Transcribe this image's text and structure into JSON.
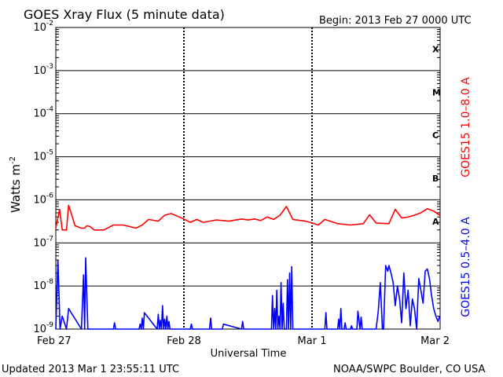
{
  "header": {
    "title": "GOES Xray Flux (5 minute data)",
    "begin": "Begin:  2013 Feb 27 0000 UTC"
  },
  "footer": {
    "updated": "Updated 2013 Mar  1 23:55:11 UTC",
    "credit": "NOAA/SWPC Boulder, CO USA"
  },
  "chart_data": {
    "type": "line",
    "title": "GOES Xray Flux (5 minute data)",
    "xlabel": "Universal Time",
    "ylabel": "Watts m",
    "ylabel_sup": "-2",
    "yscale": "log",
    "ylim": [
      1e-09,
      0.01
    ],
    "xlim": [
      "2013-02-27 00:00",
      "2013-03-02 00:00"
    ],
    "x_ticks": [
      "Feb 27",
      "Feb 28",
      "Mar 1",
      "Mar 2"
    ],
    "y_ticks": [
      {
        "base": "10",
        "exp": "-2"
      },
      {
        "base": "10",
        "exp": "-3"
      },
      {
        "base": "10",
        "exp": "-4"
      },
      {
        "base": "10",
        "exp": "-5"
      },
      {
        "base": "10",
        "exp": "-6"
      },
      {
        "base": "10",
        "exp": "-7"
      },
      {
        "base": "10",
        "exp": "-8"
      },
      {
        "base": "10",
        "exp": "-9"
      }
    ],
    "flare_classes": [
      "X",
      "M",
      "C",
      "B",
      "A"
    ],
    "grid": true,
    "series": [
      {
        "name": "GOES15 1.0–8.0 A",
        "color": "#ff0000",
        "x": [
          "02-27 00:00",
          "02-27 00:42",
          "02-27 01:12",
          "02-27 02:00",
          "02-27 02:24",
          "02-27 03:36",
          "02-27 04:48",
          "02-27 05:24",
          "02-27 05:48",
          "02-27 06:24",
          "02-27 07:12",
          "02-27 09:00",
          "02-27 10:48",
          "02-27 12:36",
          "02-27 13:48",
          "02-27 15:00",
          "02-27 16:12",
          "02-27 17:24",
          "02-27 19:12",
          "02-27 20:24",
          "02-27 21:36",
          "02-28 00:00",
          "02-28 01:12",
          "02-28 02:24",
          "02-28 03:36",
          "02-28 04:48",
          "02-28 06:00",
          "02-28 08:24",
          "02-28 10:48",
          "02-28 12:00",
          "02-28 13:12",
          "02-28 14:24",
          "02-28 15:36",
          "02-28 16:48",
          "02-28 18:00",
          "02-28 19:12",
          "02-28 20:24",
          "02-28 22:48",
          "03-01 00:00",
          "03-01 01:12",
          "03-01 02:24",
          "03-01 04:48",
          "03-01 07:12",
          "03-01 09:36",
          "03-01 10:48",
          "03-01 12:00",
          "03-01 14:24",
          "03-01 15:36",
          "03-01 16:48",
          "03-01 18:00",
          "03-01 19:12",
          "03-01 20:24",
          "03-01 21:36",
          "03-01 22:48",
          "03-01 23:55"
        ],
        "values": [
          2.2e-07,
          6e-07,
          2e-07,
          2e-07,
          7.5e-07,
          2.5e-07,
          2.2e-07,
          2.2e-07,
          2.5e-07,
          2.4e-07,
          2e-07,
          2e-07,
          2.6e-07,
          2.6e-07,
          2.4e-07,
          2.2e-07,
          2.6e-07,
          3.5e-07,
          3.2e-07,
          4.4e-07,
          4.8e-07,
          3.6e-07,
          3e-07,
          3.5e-07,
          3e-07,
          3.2e-07,
          3.4e-07,
          3.2e-07,
          3.6e-07,
          3.4e-07,
          3.6e-07,
          3.3e-07,
          4e-07,
          3.5e-07,
          4.4e-07,
          7e-07,
          3.5e-07,
          3.2e-07,
          2.9e-07,
          2.6e-07,
          3.5e-07,
          2.8e-07,
          2.6e-07,
          2.8e-07,
          4.5e-07,
          2.9e-07,
          2.8e-07,
          6e-07,
          3.8e-07,
          4e-07,
          4.4e-07,
          5e-07,
          6.2e-07,
          5.5e-07,
          4.4e-07
        ]
      },
      {
        "name": "GOES15 0.5–4.0 A",
        "color": "#0000ff",
        "x": [
          "02-27 00:00",
          "02-27 00:24",
          "02-27 00:48",
          "02-27 01:12",
          "02-27 02:00",
          "02-27 02:24",
          "02-27 04:48",
          "02-27 05:12",
          "02-27 05:24",
          "02-27 05:36",
          "02-27 06:00",
          "02-27 10:48",
          "02-27 11:00",
          "02-27 11:12",
          "02-27 15:36",
          "02-27 15:48",
          "02-27 16:00",
          "02-27 16:12",
          "02-27 16:24",
          "02-27 16:36",
          "02-27 19:00",
          "02-27 19:12",
          "02-27 19:24",
          "02-27 19:36",
          "02-27 19:48",
          "02-27 20:00",
          "02-27 20:12",
          "02-27 20:24",
          "02-27 20:36",
          "02-27 20:48",
          "02-27 21:00",
          "02-27 21:12",
          "02-27 21:24",
          "02-28 00:00",
          "02-28 01:12",
          "02-28 01:24",
          "02-28 01:36",
          "02-28 04:48",
          "02-28 05:00",
          "02-28 05:12",
          "02-28 07:12",
          "02-28 07:24",
          "02-28 10:48",
          "02-28 11:00",
          "02-28 11:12",
          "02-28 16:24",
          "02-28 16:36",
          "02-28 16:48",
          "02-28 17:00",
          "02-28 17:12",
          "02-28 17:24",
          "02-28 17:36",
          "02-28 17:48",
          "02-28 18:00",
          "02-28 18:12",
          "02-28 18:24",
          "02-28 18:36",
          "02-28 18:48",
          "02-28 19:12",
          "02-28 19:24",
          "02-28 19:36",
          "02-28 19:48",
          "02-28 20:00",
          "02-28 20:12",
          "02-28 20:24",
          "03-01 00:00",
          "03-01 02:24",
          "03-01 02:36",
          "03-01 02:48",
          "03-01 04:48",
          "03-01 05:00",
          "03-01 05:12",
          "03-01 05:24",
          "03-01 05:36",
          "03-01 06:00",
          "03-01 06:12",
          "03-01 06:24",
          "03-01 07:12",
          "03-01 07:24",
          "03-01 07:36",
          "03-01 08:24",
          "03-01 08:36",
          "03-01 09:00",
          "03-01 09:12",
          "03-01 09:24",
          "03-01 12:00",
          "03-01 12:24",
          "03-01 12:48",
          "03-01 13:12",
          "03-01 13:24",
          "03-01 13:48",
          "03-01 14:12",
          "03-01 14:24",
          "03-01 14:48",
          "03-01 15:12",
          "03-01 15:36",
          "03-01 16:00",
          "03-01 16:24",
          "03-01 16:48",
          "03-01 17:12",
          "03-01 17:36",
          "03-01 18:00",
          "03-01 18:24",
          "03-01 18:48",
          "03-01 19:12",
          "03-01 19:36",
          "03-01 20:00",
          "03-01 20:24",
          "03-01 20:48",
          "03-01 21:12",
          "03-01 21:36",
          "03-01 22:00",
          "03-01 22:24",
          "03-01 22:48",
          "03-01 23:12",
          "03-01 23:36",
          "03-01 23:55"
        ],
        "values": [
          1e-09,
          4e-08,
          1e-09,
          2e-09,
          1e-09,
          3e-09,
          1e-09,
          1.8e-08,
          1e-09,
          4.5e-08,
          1e-09,
          1e-09,
          1.4e-09,
          1e-09,
          1e-09,
          1.3e-09,
          1e-09,
          1.8e-09,
          1e-09,
          2.4e-09,
          1e-09,
          2.2e-09,
          1e-09,
          1.6e-09,
          1e-09,
          3.5e-09,
          1e-09,
          1.7e-09,
          1e-09,
          2e-09,
          1e-09,
          1.5e-09,
          1e-09,
          1e-09,
          1e-09,
          1.3e-09,
          1e-09,
          1e-09,
          1.8e-09,
          1e-09,
          1e-09,
          1.3e-09,
          1e-09,
          1.5e-09,
          1e-09,
          1e-09,
          6e-09,
          1e-09,
          3e-09,
          1e-09,
          8e-09,
          1e-09,
          2e-09,
          1e-09,
          1.2e-08,
          1e-09,
          4e-09,
          1e-09,
          1e-09,
          1.4e-08,
          1e-09,
          2e-08,
          1e-09,
          2.8e-08,
          1e-09,
          1e-09,
          1e-09,
          2.4e-09,
          1e-09,
          1e-09,
          1.7e-09,
          1e-09,
          3e-09,
          1e-09,
          1e-09,
          1.4e-09,
          1e-09,
          1e-09,
          1.2e-09,
          1e-09,
          1e-09,
          2.6e-09,
          1e-09,
          1.9e-09,
          1e-09,
          1e-09,
          2.5e-09,
          1.2e-08,
          1e-09,
          1e-09,
          3e-08,
          2.2e-08,
          3e-08,
          2e-08,
          1.2e-08,
          3.5e-09,
          1e-08,
          5e-09,
          1.4e-09,
          2e-08,
          3e-09,
          8e-09,
          1.2e-09,
          5e-09,
          3e-09,
          1e-09,
          1.5e-08,
          8e-09,
          4e-09,
          2.2e-08,
          2.5e-08,
          1.5e-08,
          6e-09,
          3e-09,
          2e-09,
          1.5e-09,
          2e-09
        ]
      }
    ]
  }
}
